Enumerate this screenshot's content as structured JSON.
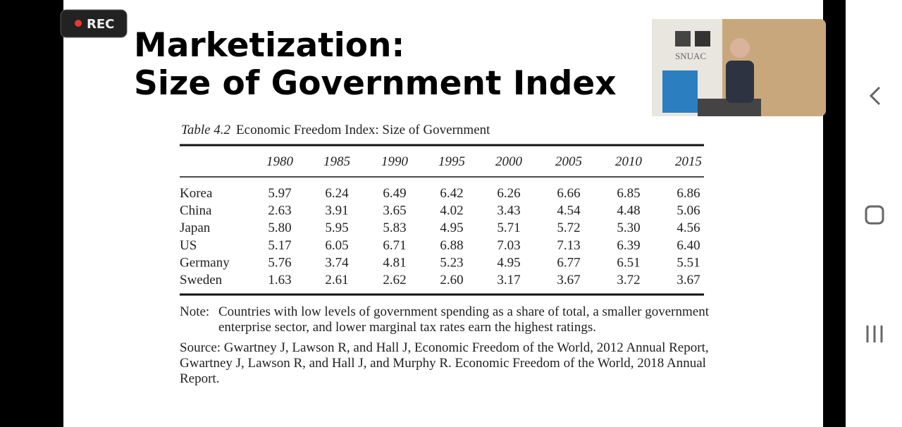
{
  "recording": {
    "label": "REC"
  },
  "slide": {
    "title_lines": [
      "Marketization:",
      "Size of Government Index"
    ],
    "video": {
      "logo": "SNUAC"
    },
    "table": {
      "number": "Table 4.2",
      "caption": "Economic Freedom Index: Size of Government",
      "columns": [
        "1980",
        "1985",
        "1990",
        "1995",
        "2000",
        "2005",
        "2010",
        "2015"
      ],
      "rows": [
        {
          "country": "Korea",
          "values": [
            "5.97",
            "6.24",
            "6.49",
            "6.42",
            "6.26",
            "6.66",
            "6.85",
            "6.86"
          ]
        },
        {
          "country": "China",
          "values": [
            "2.63",
            "3.91",
            "3.65",
            "4.02",
            "3.43",
            "4.54",
            "4.48",
            "5.06"
          ]
        },
        {
          "country": "Japan",
          "values": [
            "5.80",
            "5.95",
            "5.83",
            "4.95",
            "5.71",
            "5.72",
            "5.30",
            "4.56"
          ]
        },
        {
          "country": "US",
          "values": [
            "5.17",
            "6.05",
            "6.71",
            "6.88",
            "7.03",
            "7.13",
            "6.39",
            "6.40"
          ]
        },
        {
          "country": "Germany",
          "values": [
            "5.76",
            "3.74",
            "4.81",
            "5.23",
            "4.95",
            "6.77",
            "6.51",
            "5.51"
          ]
        },
        {
          "country": "Sweden",
          "values": [
            "1.63",
            "2.61",
            "2.62",
            "2.60",
            "3.17",
            "3.67",
            "3.72",
            "3.67"
          ]
        }
      ]
    },
    "note": {
      "label": "Note:",
      "lines": [
        "Countries with low levels of government spending as a share of total, a smaller government",
        "enterprise sector, and lower marginal tax rates earn the highest ratings."
      ]
    },
    "source": {
      "lines": [
        "Source: Gwartney J, Lawson R, and Hall J, Economic Freedom of the World, 2012 Annual Report,",
        "Gwartney J, Lawson R, and Hall J, and Murphy R. Economic Freedom of the World, 2018 Annual",
        "Report."
      ]
    }
  }
}
